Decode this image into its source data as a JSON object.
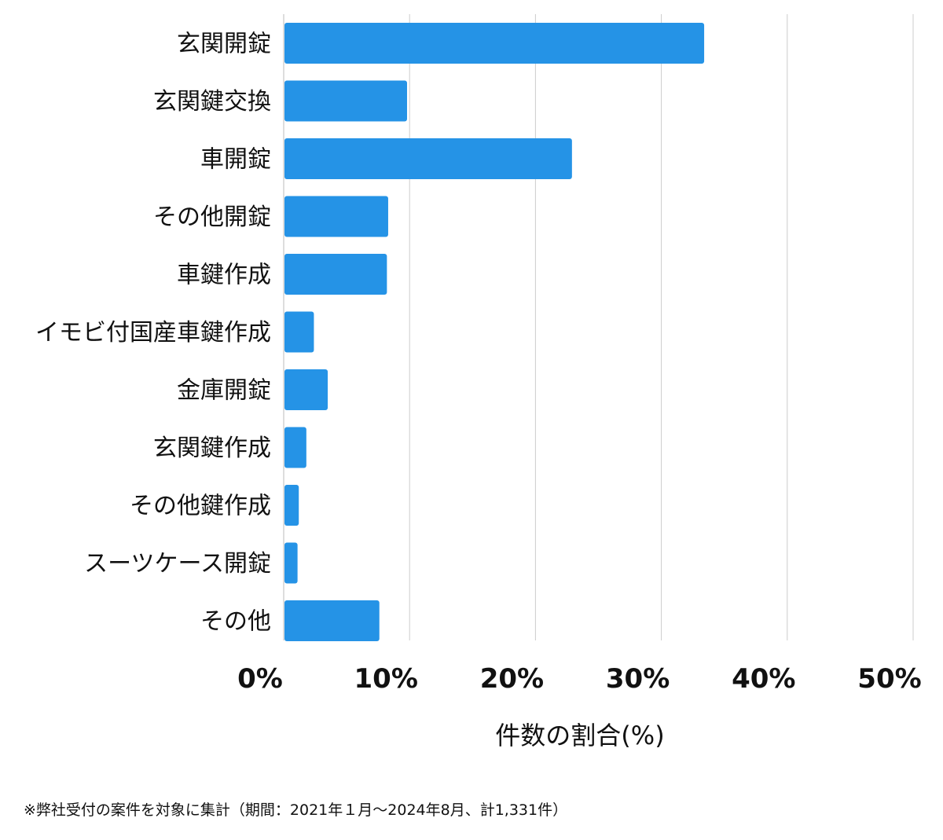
{
  "chart_data": {
    "type": "bar",
    "orientation": "horizontal",
    "categories": [
      "玄関開錠",
      "玄関鍵交換",
      "車開錠",
      "その他開錠",
      "車鍵作成",
      "イモビ付国産車鍵作成",
      "金庫開錠",
      "玄関鍵作成",
      "その他鍵作成",
      "スーツケース開錠",
      "その他"
    ],
    "values": [
      33.4,
      9.8,
      22.9,
      8.3,
      8.2,
      2.4,
      3.5,
      1.8,
      1.2,
      1.1,
      7.6
    ],
    "xlabel": "件数の割合(%)",
    "ylabel": "",
    "xlim": [
      0,
      50
    ],
    "xticks": [
      0,
      10,
      20,
      30,
      40,
      50
    ],
    "xtick_labels": [
      "0%",
      "10%",
      "20%",
      "30%",
      "40%",
      "50%"
    ],
    "grid": "vertical",
    "bar_color": "#2593e6",
    "grid_color": "#cccccc"
  },
  "footnote": "※弊社受付の案件を対象に集計（期間：2021年１月〜2024年8月、計1,331件）"
}
